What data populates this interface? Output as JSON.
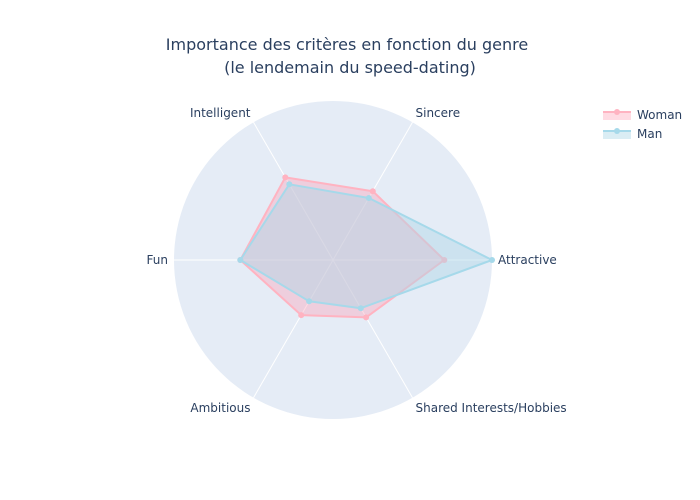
{
  "chart_data": {
    "type": "radar",
    "title_lines": [
      "Importance des critères en fonction du genre",
      "(le lendemain du speed-dating)"
    ],
    "categories": [
      "Attractive",
      "Sincere",
      "Intelligent",
      "Fun",
      "Ambitious",
      "Shared Interests/Hobbies"
    ],
    "range": [
      0,
      30
    ],
    "series": [
      {
        "name": "Woman",
        "values": [
          21.0,
          15.0,
          18.0,
          17.5,
          12.0,
          12.5
        ],
        "color": "#ffb3c1",
        "fill": "rgba(255,153,175,0.35)"
      },
      {
        "name": "Man",
        "values": [
          30.0,
          13.5,
          16.5,
          17.5,
          9.0,
          10.5
        ],
        "color": "#a6d9ea",
        "fill": "rgba(173,216,230,0.45)"
      }
    ],
    "legend_position": "top-right"
  }
}
